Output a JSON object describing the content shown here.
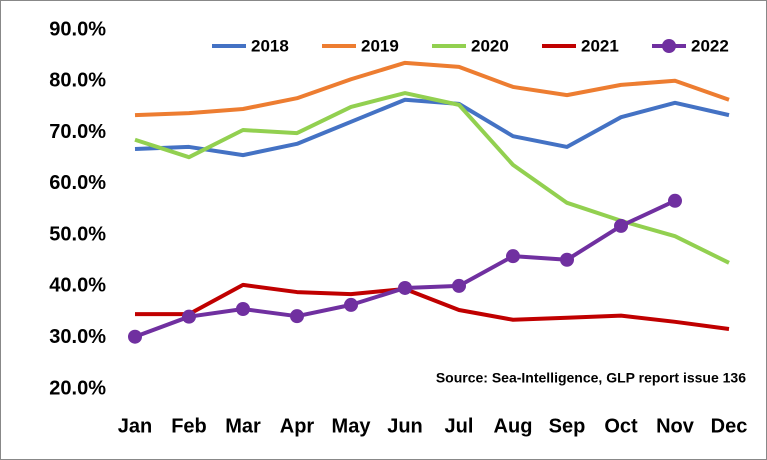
{
  "chart_data": {
    "type": "line",
    "categories": [
      "Jan",
      "Feb",
      "Mar",
      "Apr",
      "May",
      "Jun",
      "Jul",
      "Aug",
      "Sep",
      "Oct",
      "Nov",
      "Dec"
    ],
    "series": [
      {
        "name": "2018",
        "color": "#4472c4",
        "values": [
          66.8,
          67.2,
          65.6,
          67.8,
          72.1,
          76.4,
          75.6,
          69.3,
          67.2,
          73.0,
          75.8,
          73.4
        ]
      },
      {
        "name": "2019",
        "color": "#ed7d31",
        "values": [
          73.4,
          73.8,
          74.6,
          76.7,
          80.4,
          83.6,
          82.8,
          78.9,
          77.3,
          79.3,
          80.1,
          76.4
        ]
      },
      {
        "name": "2020",
        "color": "#92d050",
        "values": [
          68.6,
          65.2,
          70.5,
          69.9,
          75.0,
          77.7,
          75.4,
          63.7,
          56.3,
          52.8,
          49.8,
          44.6
        ]
      },
      {
        "name": "2021",
        "color": "#c00000",
        "values": [
          34.6,
          34.6,
          40.3,
          38.9,
          38.5,
          39.5,
          35.4,
          33.5,
          33.9,
          34.3,
          33.1,
          31.7
        ]
      },
      {
        "name": "2022",
        "color": "#7030a0",
        "marker": true,
        "values": [
          30.2,
          34.1,
          35.6,
          34.2,
          36.4,
          39.7,
          40.1,
          45.9,
          45.2,
          51.8,
          56.7,
          null
        ]
      }
    ],
    "ylim": [
      20,
      90
    ],
    "yticks": [
      {
        "value": 20,
        "label": "20.0%"
      },
      {
        "value": 30,
        "label": "30.0%"
      },
      {
        "value": 40,
        "label": "40.0%"
      },
      {
        "value": 50,
        "label": "50.0%"
      },
      {
        "value": 60,
        "label": "60.0%"
      },
      {
        "value": 70,
        "label": "70.0%"
      },
      {
        "value": 80,
        "label": "80.0%"
      },
      {
        "value": 90,
        "label": "90.0%"
      }
    ],
    "grid": false,
    "legend": "top",
    "annotation": "Source: Sea-Intelligence, GLP report issue 136"
  }
}
